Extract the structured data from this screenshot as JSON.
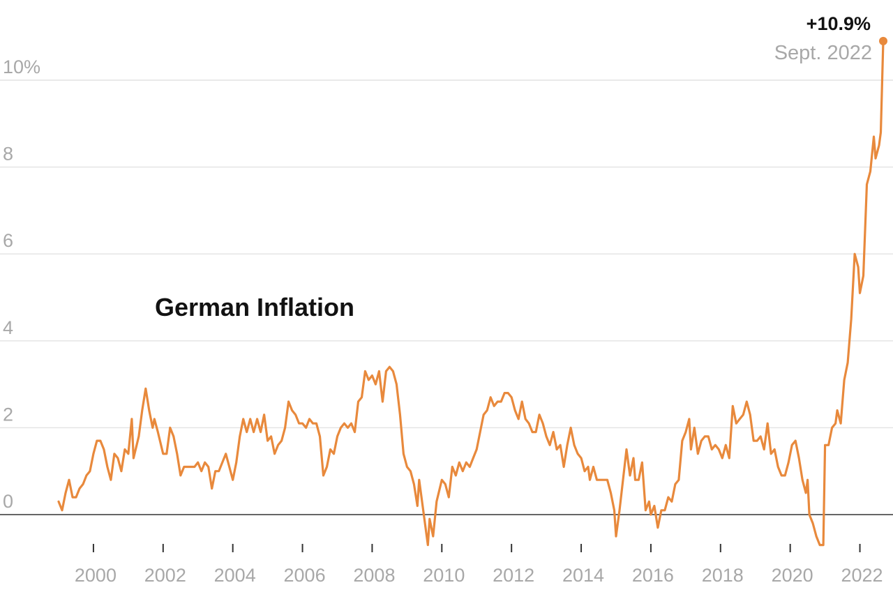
{
  "chart_data": {
    "type": "line",
    "title": "German Inflation",
    "xlabel": "",
    "ylabel": "",
    "xlim": [
      1999.0,
      2022.75
    ],
    "ylim": [
      -1.0,
      11.0
    ],
    "grid": true,
    "y_ticks": [
      {
        "value": 0,
        "label": "0"
      },
      {
        "value": 2,
        "label": "2"
      },
      {
        "value": 4,
        "label": "4"
      },
      {
        "value": 6,
        "label": "6"
      },
      {
        "value": 8,
        "label": "8"
      },
      {
        "value": 10,
        "label": "10%"
      }
    ],
    "x_ticks": [
      {
        "value": 2000,
        "label": "2000"
      },
      {
        "value": 2002,
        "label": "2002"
      },
      {
        "value": 2004,
        "label": "2004"
      },
      {
        "value": 2006,
        "label": "2006"
      },
      {
        "value": 2008,
        "label": "2008"
      },
      {
        "value": 2010,
        "label": "2010"
      },
      {
        "value": 2012,
        "label": "2012"
      },
      {
        "value": 2014,
        "label": "2014"
      },
      {
        "value": 2016,
        "label": "2016"
      },
      {
        "value": 2018,
        "label": "2018"
      },
      {
        "value": 2020,
        "label": "2020"
      },
      {
        "value": 2022,
        "label": "2022"
      }
    ],
    "line_color": "#e8893c",
    "annotation": {
      "value_label": "+10.9%",
      "date_label": "Sept. 2022",
      "x": 2022.67,
      "y": 10.9
    },
    "series": [
      {
        "name": "",
        "points": [
          [
            1999.0,
            0.3
          ],
          [
            1999.1,
            0.1
          ],
          [
            1999.2,
            0.5
          ],
          [
            1999.3,
            0.8
          ],
          [
            1999.4,
            0.4
          ],
          [
            1999.5,
            0.4
          ],
          [
            1999.6,
            0.6
          ],
          [
            1999.7,
            0.7
          ],
          [
            1999.8,
            0.9
          ],
          [
            1999.9,
            1.0
          ],
          [
            2000.0,
            1.4
          ],
          [
            2000.1,
            1.7
          ],
          [
            2000.2,
            1.7
          ],
          [
            2000.3,
            1.5
          ],
          [
            2000.4,
            1.1
          ],
          [
            2000.5,
            0.8
          ],
          [
            2000.6,
            1.4
          ],
          [
            2000.7,
            1.3
          ],
          [
            2000.8,
            1.0
          ],
          [
            2000.9,
            1.5
          ],
          [
            2001.0,
            1.4
          ],
          [
            2001.1,
            2.2
          ],
          [
            2001.15,
            1.3
          ],
          [
            2001.3,
            1.8
          ],
          [
            2001.4,
            2.4
          ],
          [
            2001.5,
            2.9
          ],
          [
            2001.6,
            2.4
          ],
          [
            2001.7,
            2.0
          ],
          [
            2001.75,
            2.2
          ],
          [
            2001.85,
            1.9
          ],
          [
            2002.0,
            1.4
          ],
          [
            2002.1,
            1.4
          ],
          [
            2002.2,
            2.0
          ],
          [
            2002.3,
            1.8
          ],
          [
            2002.4,
            1.4
          ],
          [
            2002.5,
            0.9
          ],
          [
            2002.6,
            1.1
          ],
          [
            2002.7,
            1.1
          ],
          [
            2002.8,
            1.1
          ],
          [
            2002.9,
            1.1
          ],
          [
            2003.0,
            1.2
          ],
          [
            2003.1,
            1.0
          ],
          [
            2003.2,
            1.2
          ],
          [
            2003.3,
            1.1
          ],
          [
            2003.4,
            0.6
          ],
          [
            2003.5,
            1.0
          ],
          [
            2003.6,
            1.0
          ],
          [
            2003.7,
            1.2
          ],
          [
            2003.8,
            1.4
          ],
          [
            2003.9,
            1.1
          ],
          [
            2004.0,
            0.8
          ],
          [
            2004.1,
            1.2
          ],
          [
            2004.2,
            1.8
          ],
          [
            2004.3,
            2.2
          ],
          [
            2004.4,
            1.9
          ],
          [
            2004.5,
            2.2
          ],
          [
            2004.6,
            1.9
          ],
          [
            2004.7,
            2.2
          ],
          [
            2004.8,
            1.9
          ],
          [
            2004.9,
            2.3
          ],
          [
            2005.0,
            1.7
          ],
          [
            2005.1,
            1.8
          ],
          [
            2005.2,
            1.4
          ],
          [
            2005.3,
            1.6
          ],
          [
            2005.4,
            1.7
          ],
          [
            2005.5,
            2.0
          ],
          [
            2005.6,
            2.6
          ],
          [
            2005.7,
            2.4
          ],
          [
            2005.8,
            2.3
          ],
          [
            2005.9,
            2.1
          ],
          [
            2006.0,
            2.1
          ],
          [
            2006.1,
            2.0
          ],
          [
            2006.2,
            2.2
          ],
          [
            2006.3,
            2.1
          ],
          [
            2006.4,
            2.1
          ],
          [
            2006.5,
            1.8
          ],
          [
            2006.6,
            0.9
          ],
          [
            2006.7,
            1.1
          ],
          [
            2006.8,
            1.5
          ],
          [
            2006.9,
            1.4
          ],
          [
            2007.0,
            1.8
          ],
          [
            2007.1,
            2.0
          ],
          [
            2007.2,
            2.1
          ],
          [
            2007.3,
            2.0
          ],
          [
            2007.4,
            2.1
          ],
          [
            2007.5,
            1.9
          ],
          [
            2007.6,
            2.6
          ],
          [
            2007.7,
            2.7
          ],
          [
            2007.8,
            3.3
          ],
          [
            2007.9,
            3.1
          ],
          [
            2008.0,
            3.2
          ],
          [
            2008.1,
            3.0
          ],
          [
            2008.2,
            3.3
          ],
          [
            2008.3,
            2.6
          ],
          [
            2008.4,
            3.3
          ],
          [
            2008.5,
            3.4
          ],
          [
            2008.6,
            3.3
          ],
          [
            2008.7,
            3.0
          ],
          [
            2008.8,
            2.3
          ],
          [
            2008.9,
            1.4
          ],
          [
            2009.0,
            1.1
          ],
          [
            2009.1,
            1.0
          ],
          [
            2009.2,
            0.7
          ],
          [
            2009.3,
            0.2
          ],
          [
            2009.35,
            0.8
          ],
          [
            2009.5,
            -0.1
          ],
          [
            2009.6,
            -0.7
          ],
          [
            2009.65,
            -0.1
          ],
          [
            2009.75,
            -0.5
          ],
          [
            2009.85,
            0.3
          ],
          [
            2010.0,
            0.8
          ],
          [
            2010.1,
            0.7
          ],
          [
            2010.2,
            0.4
          ],
          [
            2010.3,
            1.1
          ],
          [
            2010.4,
            0.9
          ],
          [
            2010.5,
            1.2
          ],
          [
            2010.6,
            1.0
          ],
          [
            2010.7,
            1.2
          ],
          [
            2010.8,
            1.1
          ],
          [
            2010.9,
            1.3
          ],
          [
            2011.0,
            1.5
          ],
          [
            2011.1,
            1.9
          ],
          [
            2011.2,
            2.3
          ],
          [
            2011.3,
            2.4
          ],
          [
            2011.4,
            2.7
          ],
          [
            2011.5,
            2.5
          ],
          [
            2011.6,
            2.6
          ],
          [
            2011.7,
            2.6
          ],
          [
            2011.8,
            2.8
          ],
          [
            2011.9,
            2.8
          ],
          [
            2012.0,
            2.7
          ],
          [
            2012.1,
            2.4
          ],
          [
            2012.2,
            2.2
          ],
          [
            2012.3,
            2.6
          ],
          [
            2012.4,
            2.2
          ],
          [
            2012.5,
            2.1
          ],
          [
            2012.6,
            1.9
          ],
          [
            2012.7,
            1.9
          ],
          [
            2012.8,
            2.3
          ],
          [
            2012.9,
            2.1
          ],
          [
            2013.0,
            1.8
          ],
          [
            2013.1,
            1.6
          ],
          [
            2013.2,
            1.9
          ],
          [
            2013.3,
            1.5
          ],
          [
            2013.4,
            1.6
          ],
          [
            2013.5,
            1.1
          ],
          [
            2013.6,
            1.6
          ],
          [
            2013.7,
            2.0
          ],
          [
            2013.8,
            1.6
          ],
          [
            2013.9,
            1.4
          ],
          [
            2014.0,
            1.3
          ],
          [
            2014.1,
            1.0
          ],
          [
            2014.2,
            1.1
          ],
          [
            2014.25,
            0.8
          ],
          [
            2014.35,
            1.1
          ],
          [
            2014.45,
            0.8
          ],
          [
            2014.55,
            0.8
          ],
          [
            2014.65,
            0.8
          ],
          [
            2014.75,
            0.8
          ],
          [
            2014.85,
            0.5
          ],
          [
            2014.95,
            0.1
          ],
          [
            2015.0,
            -0.5
          ],
          [
            2015.1,
            0.1
          ],
          [
            2015.2,
            0.8
          ],
          [
            2015.3,
            1.5
          ],
          [
            2015.4,
            0.9
          ],
          [
            2015.5,
            1.3
          ],
          [
            2015.55,
            0.8
          ],
          [
            2015.65,
            0.8
          ],
          [
            2015.75,
            1.2
          ],
          [
            2015.85,
            0.1
          ],
          [
            2015.95,
            0.3
          ],
          [
            2016.0,
            0.0
          ],
          [
            2016.1,
            0.2
          ],
          [
            2016.2,
            -0.3
          ],
          [
            2016.3,
            0.1
          ],
          [
            2016.4,
            0.1
          ],
          [
            2016.5,
            0.4
          ],
          [
            2016.6,
            0.3
          ],
          [
            2016.7,
            0.7
          ],
          [
            2016.8,
            0.8
          ],
          [
            2016.9,
            1.7
          ],
          [
            2017.0,
            1.9
          ],
          [
            2017.1,
            2.2
          ],
          [
            2017.15,
            1.5
          ],
          [
            2017.25,
            2.0
          ],
          [
            2017.35,
            1.4
          ],
          [
            2017.45,
            1.7
          ],
          [
            2017.55,
            1.8
          ],
          [
            2017.65,
            1.8
          ],
          [
            2017.75,
            1.5
          ],
          [
            2017.85,
            1.6
          ],
          [
            2017.95,
            1.5
          ],
          [
            2018.05,
            1.3
          ],
          [
            2018.15,
            1.6
          ],
          [
            2018.25,
            1.3
          ],
          [
            2018.35,
            2.5
          ],
          [
            2018.45,
            2.1
          ],
          [
            2018.55,
            2.2
          ],
          [
            2018.65,
            2.3
          ],
          [
            2018.75,
            2.6
          ],
          [
            2018.85,
            2.3
          ],
          [
            2018.95,
            1.7
          ],
          [
            2019.05,
            1.7
          ],
          [
            2019.15,
            1.8
          ],
          [
            2019.25,
            1.5
          ],
          [
            2019.35,
            2.1
          ],
          [
            2019.45,
            1.4
          ],
          [
            2019.55,
            1.5
          ],
          [
            2019.65,
            1.1
          ],
          [
            2019.75,
            0.9
          ],
          [
            2019.85,
            0.9
          ],
          [
            2019.95,
            1.2
          ],
          [
            2020.05,
            1.6
          ],
          [
            2020.15,
            1.7
          ],
          [
            2020.25,
            1.3
          ],
          [
            2020.35,
            0.8
          ],
          [
            2020.45,
            0.5
          ],
          [
            2020.5,
            0.8
          ],
          [
            2020.55,
            0.0
          ],
          [
            2020.65,
            -0.2
          ],
          [
            2020.75,
            -0.5
          ],
          [
            2020.85,
            -0.7
          ],
          [
            2020.95,
            -0.7
          ],
          [
            2021.0,
            1.6
          ],
          [
            2021.1,
            1.6
          ],
          [
            2021.2,
            2.0
          ],
          [
            2021.3,
            2.1
          ],
          [
            2021.35,
            2.4
          ],
          [
            2021.45,
            2.1
          ],
          [
            2021.55,
            3.1
          ],
          [
            2021.65,
            3.5
          ],
          [
            2021.75,
            4.5
          ],
          [
            2021.85,
            6.0
          ],
          [
            2021.95,
            5.7
          ],
          [
            2022.0,
            5.1
          ],
          [
            2022.1,
            5.5
          ],
          [
            2022.2,
            7.6
          ],
          [
            2022.3,
            7.9
          ],
          [
            2022.4,
            8.7
          ],
          [
            2022.45,
            8.2
          ],
          [
            2022.55,
            8.5
          ],
          [
            2022.6,
            8.8
          ],
          [
            2022.67,
            10.9
          ]
        ]
      }
    ]
  }
}
